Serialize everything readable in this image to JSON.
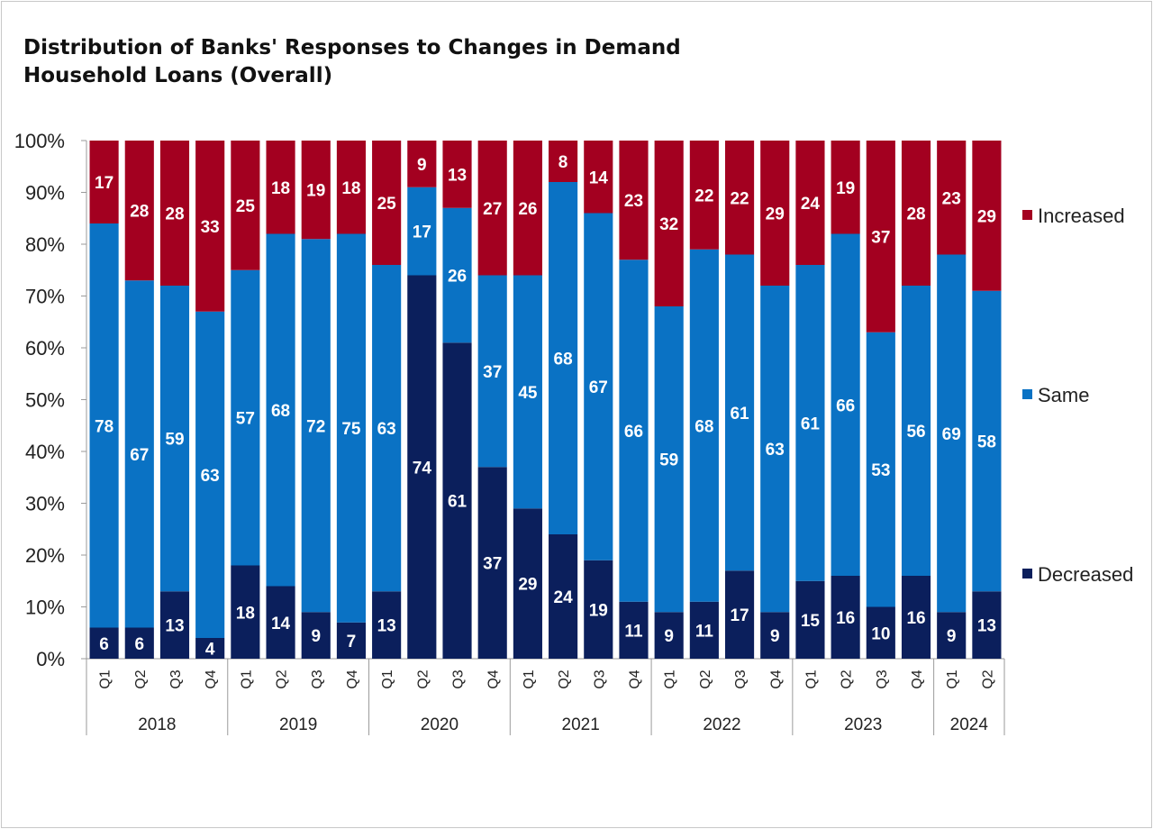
{
  "chart_data": {
    "type": "bar",
    "stacked": true,
    "title_lines": [
      "Distribution of Banks' Responses to Changes in Demand",
      "Household Loans (Overall)"
    ],
    "categories": [
      "Q1",
      "Q2",
      "Q3",
      "Q4",
      "Q1",
      "Q2",
      "Q3",
      "Q4",
      "Q1",
      "Q2",
      "Q3",
      "Q4",
      "Q1",
      "Q2",
      "Q3",
      "Q4",
      "Q1",
      "Q2",
      "Q3",
      "Q4",
      "Q1",
      "Q2",
      "Q3",
      "Q4",
      "Q1",
      "Q2"
    ],
    "groups": [
      {
        "label": "2018",
        "count": 4
      },
      {
        "label": "2019",
        "count": 4
      },
      {
        "label": "2020",
        "count": 4
      },
      {
        "label": "2021",
        "count": 4
      },
      {
        "label": "2022",
        "count": 4
      },
      {
        "label": "2023",
        "count": 4
      },
      {
        "label": "2024",
        "count": 2
      }
    ],
    "series": [
      {
        "name": "Decreased",
        "color": "#0b1f5c",
        "values": [
          6,
          6,
          13,
          4,
          18,
          14,
          9,
          7,
          13,
          74,
          61,
          37,
          29,
          24,
          19,
          11,
          9,
          11,
          17,
          9,
          15,
          16,
          10,
          16,
          9,
          13
        ]
      },
      {
        "name": "Same",
        "color": "#0a72c4",
        "values": [
          78,
          67,
          59,
          63,
          57,
          68,
          72,
          75,
          63,
          17,
          26,
          37,
          45,
          68,
          67,
          66,
          59,
          68,
          61,
          63,
          61,
          66,
          53,
          56,
          69,
          58
        ]
      },
      {
        "name": "Increased",
        "color": "#a30020",
        "values": [
          17,
          28,
          28,
          33,
          25,
          18,
          19,
          18,
          25,
          9,
          13,
          27,
          26,
          8,
          14,
          23,
          32,
          22,
          22,
          29,
          24,
          19,
          37,
          28,
          23,
          29
        ]
      }
    ],
    "yticks": [
      "0%",
      "10%",
      "20%",
      "30%",
      "40%",
      "50%",
      "60%",
      "70%",
      "80%",
      "90%",
      "100%"
    ],
    "ylim": [
      0,
      100
    ],
    "grid": false,
    "legend_position": "right"
  }
}
